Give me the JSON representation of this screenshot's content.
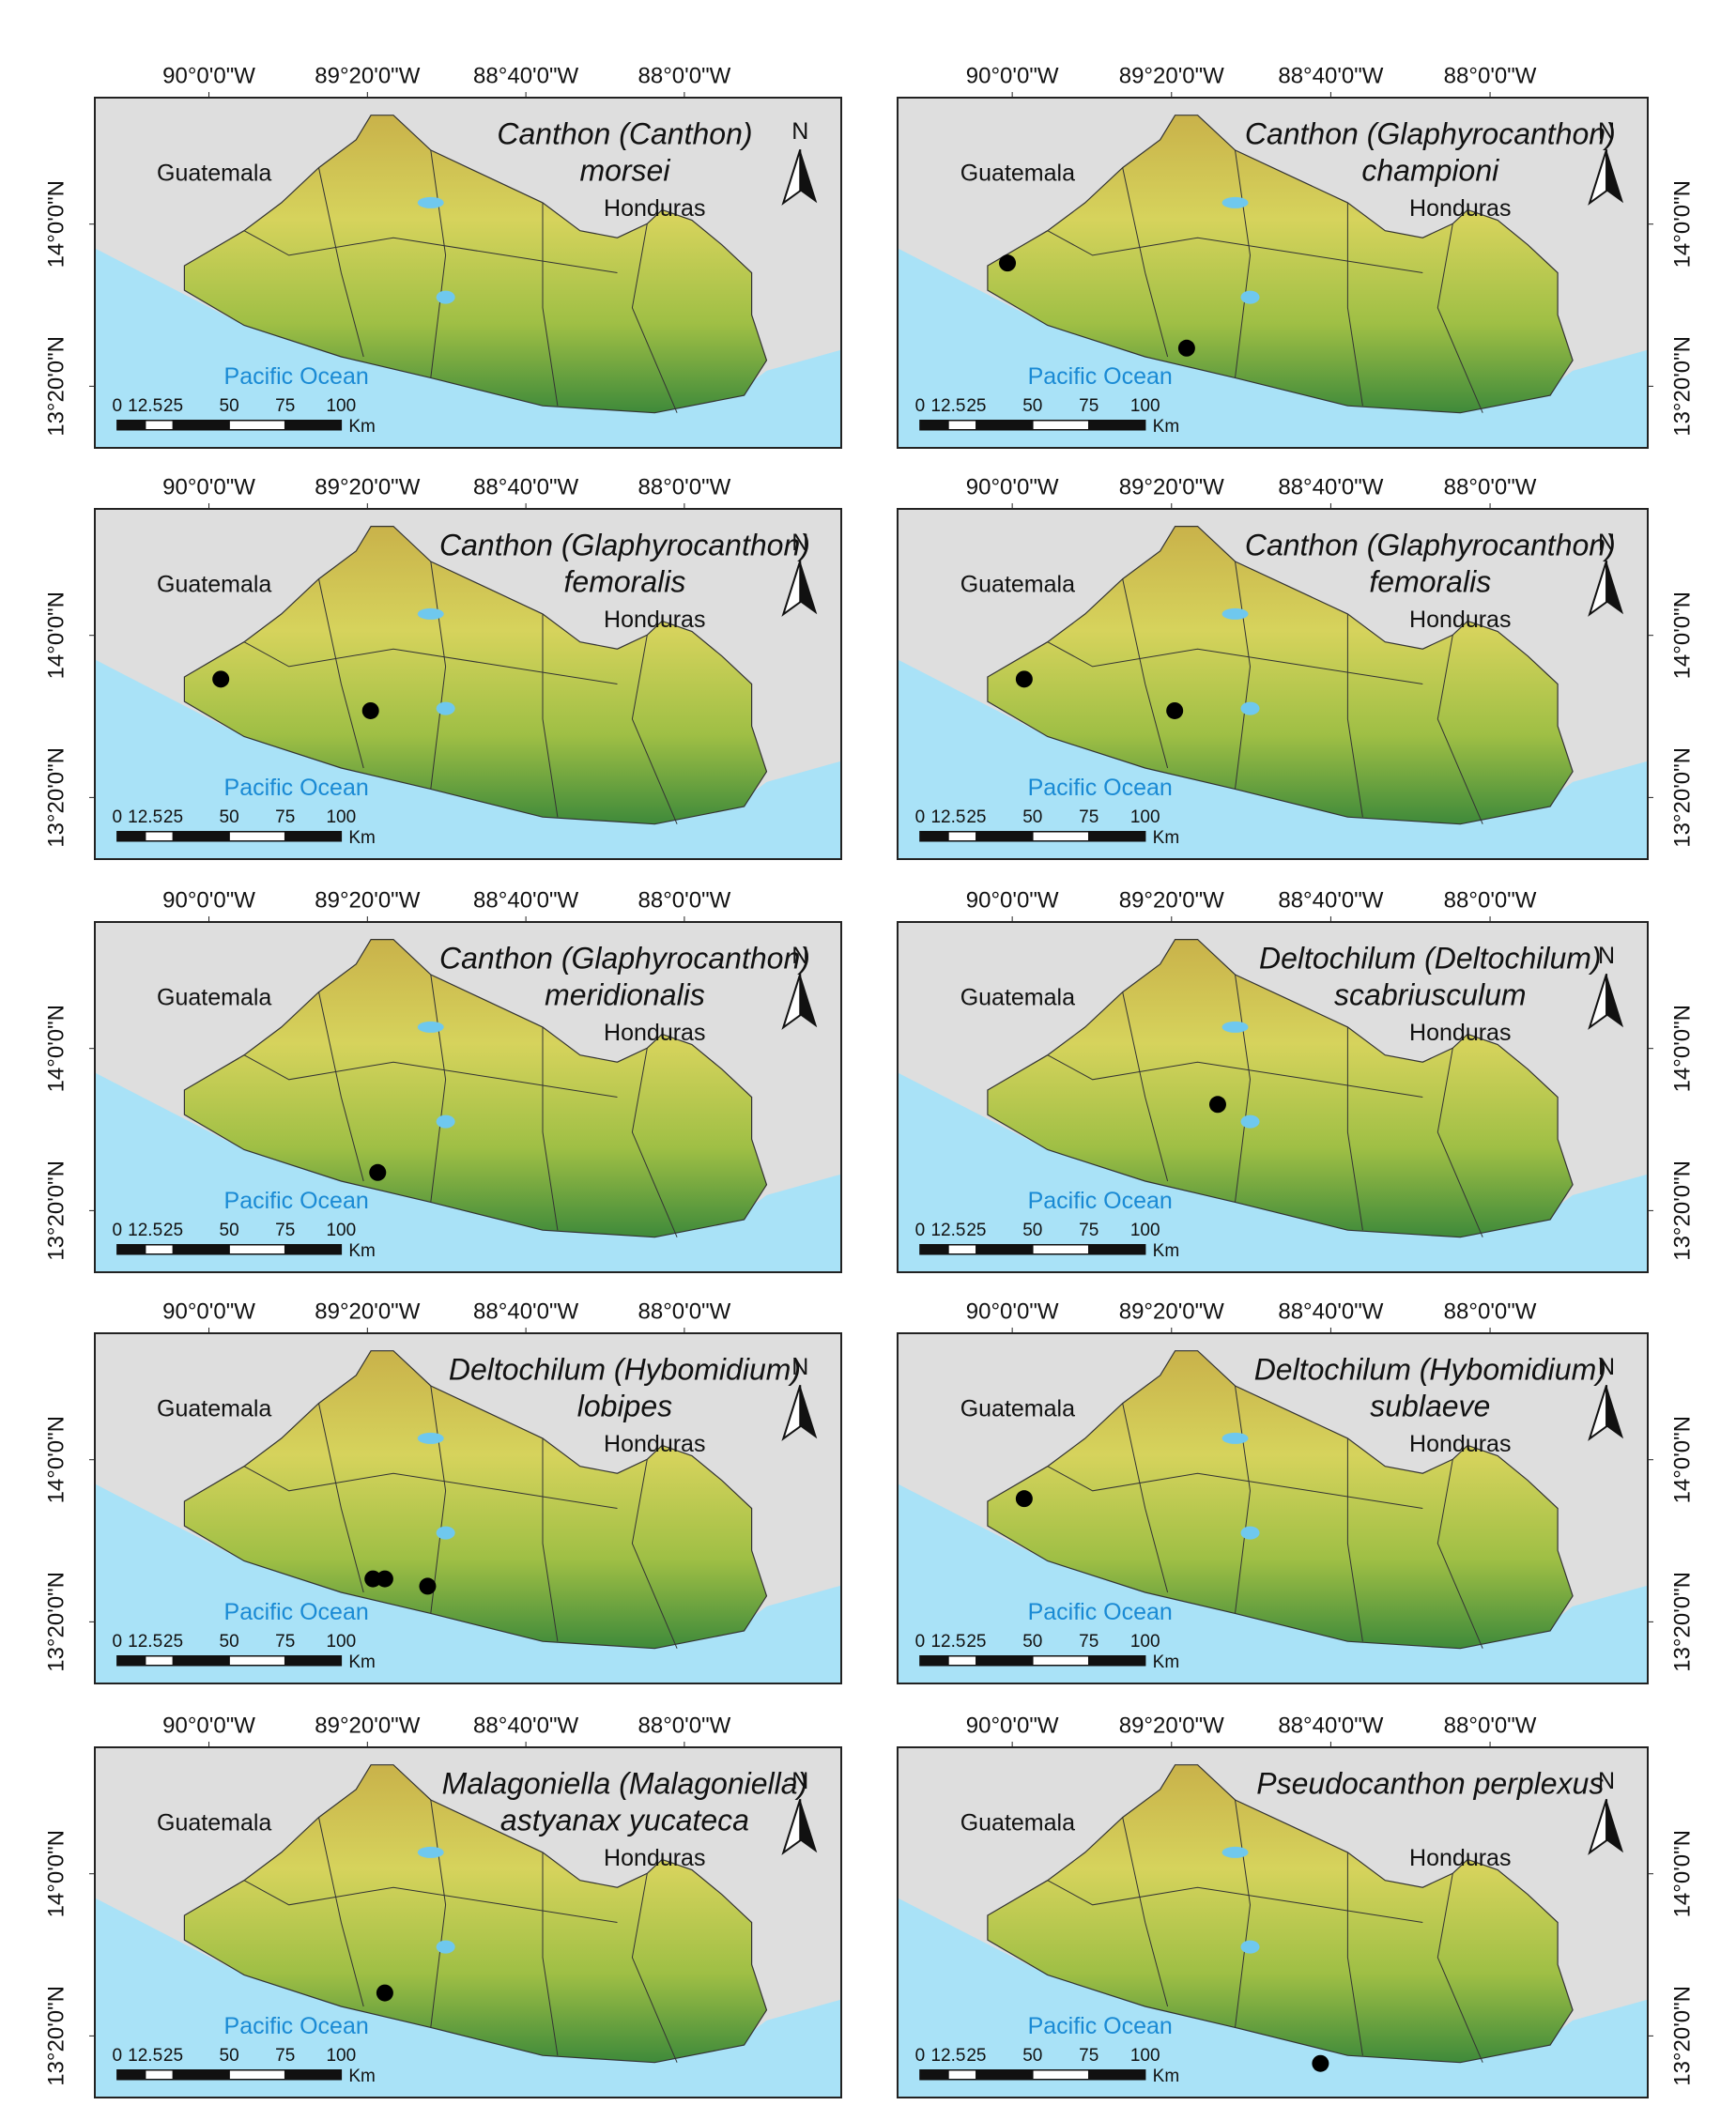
{
  "figure": {
    "xlim": [
      -90.48,
      -87.34
    ],
    "ylim": [
      13.08,
      14.52
    ],
    "lon_ticks": [
      {
        "value": -90,
        "label": "90°0'0\"W"
      },
      {
        "value": -89.33333,
        "label": "89°20'0\"W"
      },
      {
        "value": -88.66667,
        "label": "88°40'0\"W"
      },
      {
        "value": -88,
        "label": "88°0'0\"W"
      }
    ],
    "lat_ticks": [
      {
        "value": 14,
        "label": "14°0'0\"N"
      },
      {
        "value": 13.33333,
        "label": "13°20'0\"N"
      }
    ],
    "labels": {
      "guatemala": "Guatemala",
      "honduras": "Honduras",
      "ocean": "Pacific Ocean",
      "north": "N"
    },
    "scale_bar": {
      "ticks": [
        0,
        12.5,
        25,
        50,
        75,
        100
      ],
      "unit": "Km"
    }
  },
  "panels": [
    {
      "title": [
        "Canthon (Canthon)",
        "morsei"
      ],
      "occurrences": []
    },
    {
      "title": [
        "Canthon (Glaphyrocanthon)",
        "championi"
      ],
      "occurrences": [
        {
          "lon": -90.02,
          "lat": 13.84
        },
        {
          "lon": -89.27,
          "lat": 13.49
        }
      ]
    },
    {
      "title": [
        "Canthon (Glaphyrocanthon)",
        "femoralis"
      ],
      "occurrences": [
        {
          "lon": -89.95,
          "lat": 13.82
        },
        {
          "lon": -89.32,
          "lat": 13.69
        }
      ]
    },
    {
      "title": [
        "Canthon (Glaphyrocanthon)",
        "femoralis"
      ],
      "occurrences": [
        {
          "lon": -89.95,
          "lat": 13.82
        },
        {
          "lon": -89.32,
          "lat": 13.69
        }
      ]
    },
    {
      "title": [
        "Canthon (Glaphyrocanthon)",
        "meridionalis"
      ],
      "occurrences": [
        {
          "lon": -89.29,
          "lat": 13.49
        }
      ]
    },
    {
      "title": [
        "Deltochilum (Deltochilum)",
        "scabriusculum"
      ],
      "occurrences": [
        {
          "lon": -89.14,
          "lat": 13.77
        }
      ]
    },
    {
      "title": [
        "Deltochilum (Hybomidium)",
        "lobipes"
      ],
      "occurrences": [
        {
          "lon": -89.31,
          "lat": 13.51
        },
        {
          "lon": -89.26,
          "lat": 13.51
        },
        {
          "lon": -89.08,
          "lat": 13.48
        }
      ]
    },
    {
      "title": [
        "Deltochilum (Hybomidium)",
        "sublaeve"
      ],
      "occurrences": [
        {
          "lon": -89.95,
          "lat": 13.84
        }
      ]
    },
    {
      "title": [
        "Malagoniella (Malagoniella)",
        "astyanax yucateca"
      ],
      "occurrences": [
        {
          "lon": -89.26,
          "lat": 13.51
        }
      ]
    },
    {
      "title": [
        "Pseudocanthon perplexus"
      ],
      "occurrences": [
        {
          "lon": -88.71,
          "lat": 13.22
        }
      ]
    }
  ]
}
